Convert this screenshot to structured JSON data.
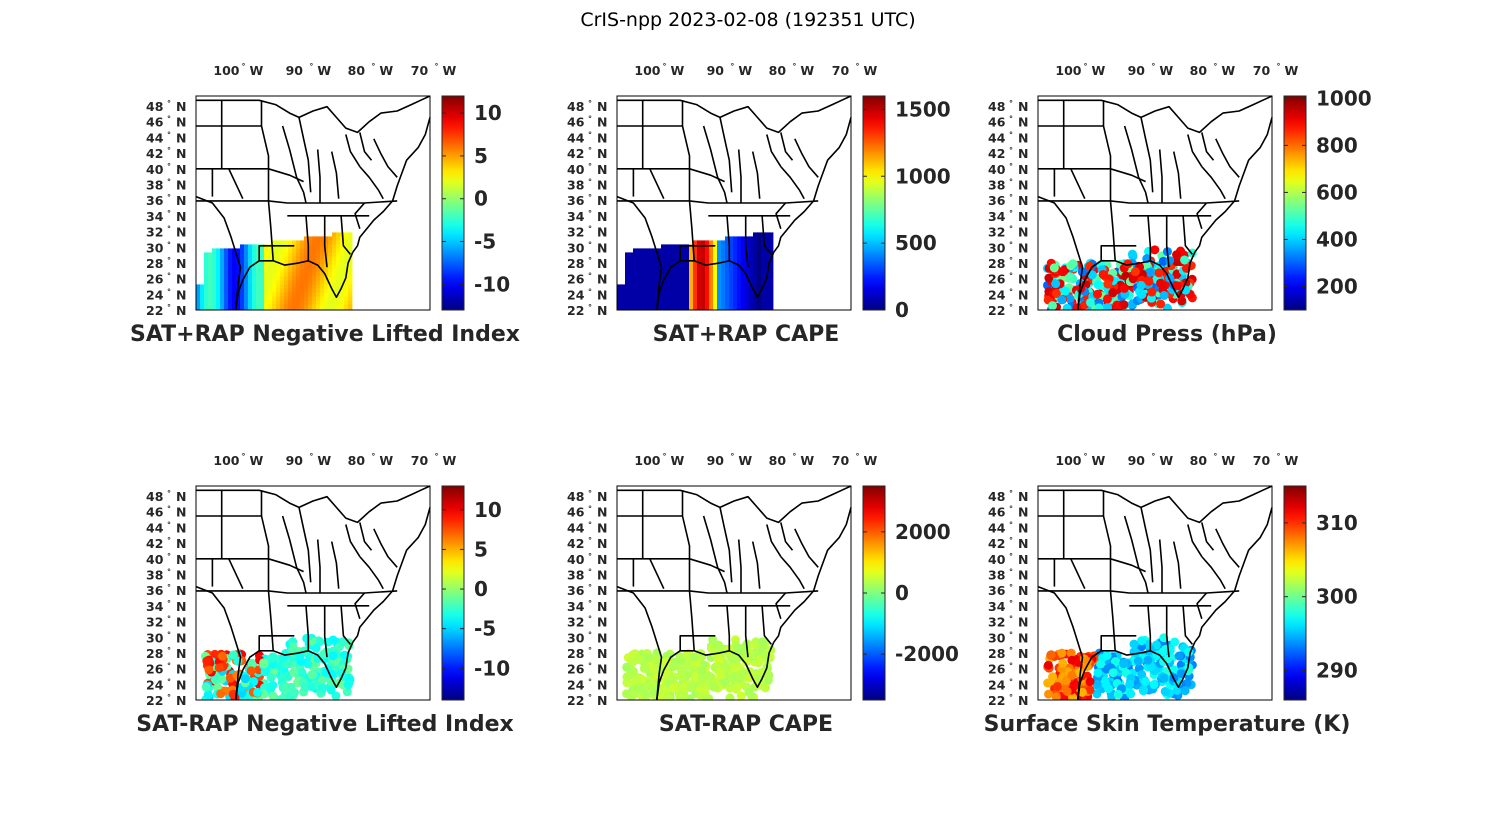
{
  "figure_title": "CrIS-npp 2023-02-08 (192351 UTC)",
  "deg_symbol": "°",
  "lon_tick_labels": [
    "100",
    "90",
    "80",
    "70"
  ],
  "lon_hemisphere": "W",
  "lat_tick_labels": [
    "48",
    "46",
    "44",
    "42",
    "40",
    "38",
    "36",
    "34",
    "32",
    "30",
    "28",
    "26",
    "24",
    "22"
  ],
  "lat_hemisphere": "N",
  "colormap": "jet",
  "colors": {
    "text": "#262626",
    "outline": "#000000",
    "background": "#ffffff"
  },
  "panels": [
    {
      "id": "sat-rap-sum-nli",
      "title": "SAT+RAP Negative Lifted Index",
      "clim": [
        -13,
        12
      ],
      "colorbar_ticks": [
        "10",
        "5",
        "0",
        "-5",
        "-10"
      ],
      "colorbar_values": [
        10,
        5,
        0,
        -5,
        -10
      ],
      "display": "swath",
      "field": "nli"
    },
    {
      "id": "sat-rap-sum-cape",
      "title": "SAT+RAP CAPE",
      "clim": [
        0,
        1600
      ],
      "colorbar_ticks": [
        "1500",
        "1000",
        "500",
        "0"
      ],
      "colorbar_values": [
        1500,
        1000,
        500,
        0
      ],
      "display": "swath",
      "field": "cape"
    },
    {
      "id": "cloud-press",
      "title": "Cloud Press (hPa)",
      "clim": [
        100,
        1010
      ],
      "colorbar_ticks": [
        "1000",
        "800",
        "600",
        "400",
        "200"
      ],
      "colorbar_values": [
        1000,
        800,
        600,
        400,
        200
      ],
      "display": "dots",
      "field": "cloud"
    },
    {
      "id": "sat-rap-diff-nli",
      "title": "SAT-RAP Negative Lifted Index",
      "clim": [
        -14,
        13
      ],
      "colorbar_ticks": [
        "10",
        "5",
        "0",
        "-5",
        "-10"
      ],
      "colorbar_values": [
        10,
        5,
        0,
        -5,
        -10
      ],
      "display": "dots",
      "field": "dnli"
    },
    {
      "id": "sat-rap-diff-cape",
      "title": "SAT-RAP CAPE",
      "clim": [
        -3500,
        3500
      ],
      "colorbar_ticks": [
        "2000",
        "0",
        "-2000"
      ],
      "colorbar_values": [
        2000,
        0,
        -2000
      ],
      "display": "dots",
      "field": "dcape"
    },
    {
      "id": "skin-temp",
      "title": "Surface Skin Temperature (K)",
      "clim": [
        286,
        315
      ],
      "colorbar_ticks": [
        "310",
        "300",
        "290"
      ],
      "colorbar_values": [
        310,
        300,
        290
      ],
      "display": "dots",
      "field": "skt"
    }
  ]
}
